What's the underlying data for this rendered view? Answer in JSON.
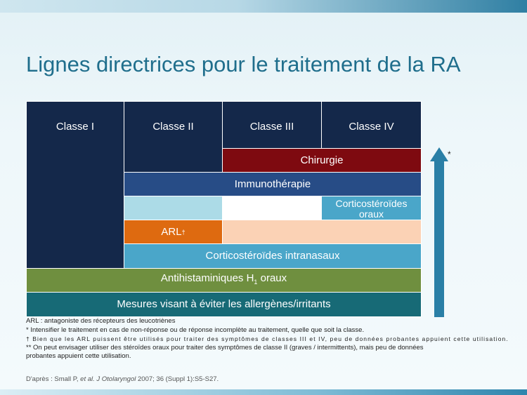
{
  "title": "Lignes directrices pour le traitement de la RA",
  "classes": {
    "c1": "Classe I",
    "c2": "Classe II",
    "c3": "Classe III",
    "c4": "Classe IV"
  },
  "rows": {
    "chirurgie": "Chirurgie",
    "immunotherapie": "Immunothérapie",
    "corticosteroides_oraux_l1": "Corticostéroïdes",
    "corticosteroides_oraux_l2": "oraux",
    "arl": "ARL",
    "arl_mark": "†",
    "corticosteroides_intranasaux": "Corticostéroïdes intranasaux",
    "antihistaminiques_pre": "Antihistaminiques H",
    "antihistaminiques_sub": "1",
    "antihistaminiques_post": " oraux",
    "mesures": "Mesures visant à éviter les allergènes/irritants"
  },
  "arrow": {
    "label": "*",
    "color": "#2a7fa6"
  },
  "notes": {
    "n1": "ARL : antagoniste des récepteurs des leucotriènes",
    "n2": "* Intensifier le traitement en cas de non-réponse ou de réponse incomplète au traitement, quelle que soit la classe.",
    "n3": "† Bien que les ARL puissent être utilisés pour traiter des symptômes de classes III et IV, peu de données probantes appuient cette utilisation.",
    "n4": "** On peut envisager utiliser des stéroïdes oraux pour traiter des symptômes de classe II (graves / intermittents), mais peu de données",
    "n5": "probantes appuient cette utilisation."
  },
  "source": {
    "prefix": "D'après : Small P, ",
    "italic": "et al. J Otolaryngol",
    "suffix": " 2007; 36 (Suppl 1):S5-S27."
  }
}
